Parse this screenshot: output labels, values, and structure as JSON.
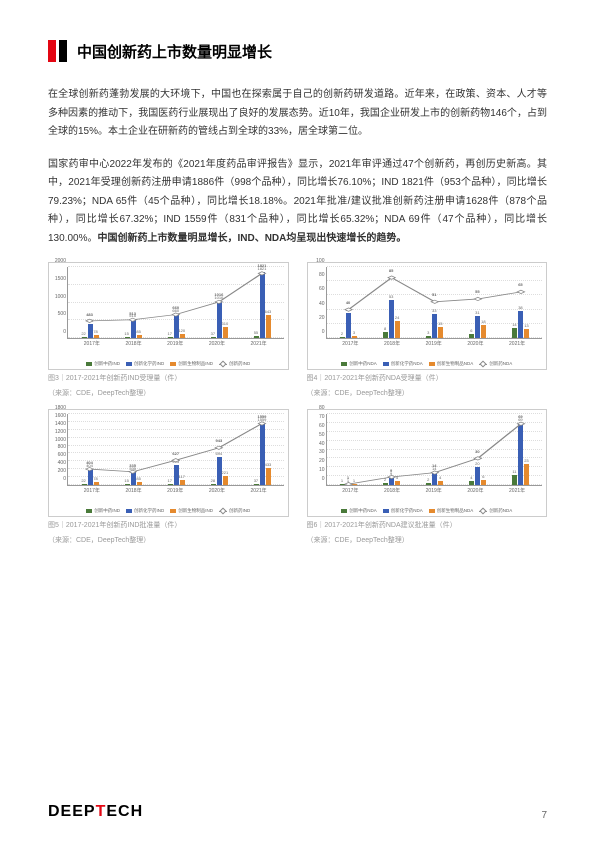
{
  "header": {
    "title": "中国创新药上市数量明显增长"
  },
  "para1": "在全球创新药蓬勃发展的大环境下，中国也在探索属于自己的创新药研发道路。近年来，在政策、资本、人才等多种因素的推动下，我国医药行业展现出了良好的发展态势。近10年，我国企业研发上市的创新药物146个，占到全球的15%。本土企业在研新药的管线占到全球的33%，居全球第二位。",
  "para2a": "国家药审中心2022年发布的《2021年度药品审评报告》显示，2021年审评通过47个创新药，再创历史新高。其中，2021年受理创新药注册申请1886件（998个品种），同比增长76.10%；IND 1821件（953个品种），同比增长79.23%；NDA 65件（45个品种），同比增长18.18%。2021年批准/建议批准创新药注册申请1628件（878个品种），同比增长67.32%；IND 1559件（831个品种），同比增长65.32%；NDA 69件（47个品种），同比增长130.00%。",
  "para2b": "中国创新药上市数量明显增长，IND、NDA均呈现出快速增长的趋势。",
  "charts": [
    {
      "caption": "图3｜2017-2021年创新药IND受理量（件）",
      "source": "（来源：CDE，DeepTech整理）",
      "ylim": 2000,
      "yticks": [
        0,
        500,
        1000,
        1500,
        2000
      ],
      "x": [
        "2017年",
        "2018年",
        "2019年",
        "2020年",
        "2021年"
      ],
      "green": [
        22,
        15,
        17,
        37,
        55
      ],
      "blue": [
        403,
        515,
        660,
        1016,
        1821
      ],
      "orange": [
        78,
        85,
        120,
        310,
        643
      ],
      "line": [
        483,
        513,
        660,
        1016,
        1821
      ],
      "legend": [
        "创新中药IND",
        "创新化学药IND",
        "创新生物制品IND",
        "创新药IND"
      ]
    },
    {
      "caption": "图4｜2017-2021年创新药NDA受理量（件）",
      "source": "（来源：CDE，DeepTech整理）",
      "ylim": 100,
      "yticks": [
        0,
        20,
        40,
        60,
        80,
        100
      ],
      "x": [
        "2017年",
        "2018年",
        "2019年",
        "2020年",
        "2021年"
      ],
      "green": [
        2,
        8,
        3,
        6,
        14
      ],
      "blue": [
        35,
        53,
        33,
        31,
        38
      ],
      "orange": [
        3,
        24,
        15,
        18,
        13
      ],
      "line": [
        40,
        85,
        51,
        55,
        65
      ],
      "legend": [
        "创新中药NDA",
        "创新化学药NDA",
        "创新生物制品NDA",
        "创新药NDA"
      ]
    },
    {
      "caption": "图5｜2017-2021年创新药IND批准量（件）",
      "source": "（来源：CDE，DeepTech整理）",
      "ylim": 1800,
      "yticks": [
        0,
        200,
        400,
        600,
        800,
        1000,
        1200,
        1400,
        1600,
        1800
      ],
      "x": [
        "2017年",
        "2018年",
        "2019年",
        "2020年",
        "2021年"
      ],
      "green": [
        22,
        15,
        17,
        28,
        37
      ],
      "blue": [
        404,
        335,
        493,
        694,
        1559
      ],
      "orange": [
        78,
        85,
        117,
        221,
        433
      ],
      "line": [
        404,
        335,
        627,
        943,
        1559
      ],
      "legend": [
        "创新中药IND",
        "创新化学药IND",
        "创新生物制品IND",
        "创新药IND"
      ]
    },
    {
      "caption": "图6｜2017-2021年创新药NDA建议批准量（件）",
      "source": "（来源：CDE，DeepTech整理）",
      "ylim": 80,
      "yticks": [
        0,
        10,
        20,
        30,
        40,
        50,
        60,
        70,
        80
      ],
      "x": [
        "2017年",
        "2018年",
        "2019年",
        "2020年",
        "2021年"
      ],
      "green": [
        1,
        2,
        2,
        4,
        11
      ],
      "blue": [
        1,
        9,
        14,
        20,
        69
      ],
      "orange": [
        1,
        5,
        4,
        6,
        23
      ],
      "line": [
        1,
        9,
        14,
        30,
        69
      ],
      "legend": [
        "创新中药NDA",
        "创新化学药NDA",
        "创新生物制品NDA",
        "创新药NDA"
      ]
    }
  ],
  "colors": {
    "green": "#4a7a3a",
    "blue": "#3a5fb5",
    "orange": "#e58a2e",
    "line": "#888888"
  },
  "footer": {
    "logo1": "DEEP",
    "logo2": "T",
    "logo3": "ECH",
    "page": "7"
  }
}
